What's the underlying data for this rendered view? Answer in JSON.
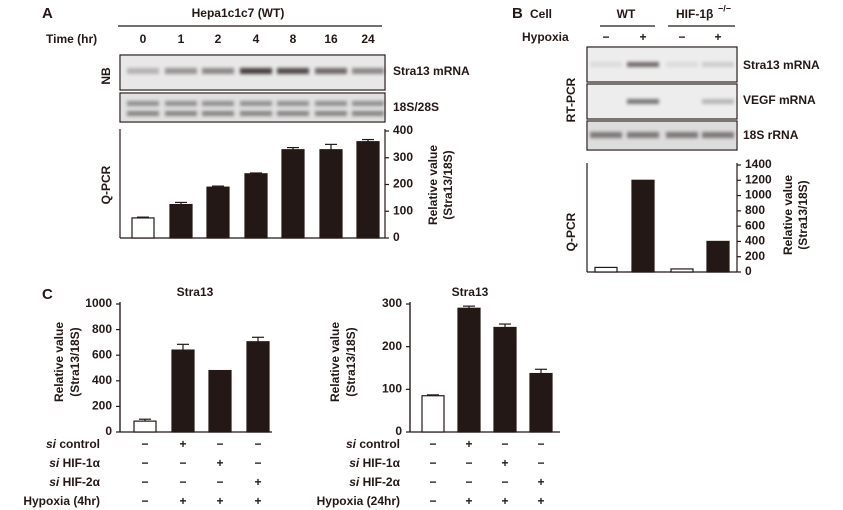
{
  "panel_A": {
    "letter": "A",
    "cell_line": "Hepa1c1c7 (WT)",
    "time_label": "Time (hr)",
    "times": [
      "0",
      "1",
      "2",
      "4",
      "8",
      "16",
      "24"
    ],
    "blot_side_label": "NB",
    "blots": [
      "Stra13 mRNA",
      "18S/28S"
    ],
    "chart_side_label": "Q-PCR"
  },
  "panel_B": {
    "letter": "B",
    "cell_label": "Cell",
    "cells": [
      "WT",
      "HIF-1β"
    ],
    "cell_superscript": "−/−",
    "hypoxia_label": "Hypoxia",
    "hypoxia": [
      "−",
      "+",
      "−",
      "+"
    ],
    "blot_side_label": "RT-PCR",
    "blots": [
      "Stra13 mRNA",
      "VEGF mRNA",
      "18S rRNA"
    ],
    "chart_side_label": "Q-PCR"
  },
  "panel_C": {
    "letter": "C",
    "left_conditions": [
      {
        "prefix": "si",
        "label": "control",
        "marks": [
          "−",
          "+",
          "−",
          "−"
        ]
      },
      {
        "prefix": "si",
        "label": "HIF-1α",
        "marks": [
          "−",
          "−",
          "+",
          "−"
        ]
      },
      {
        "prefix": "si",
        "label": "HIF-2α",
        "marks": [
          "−",
          "−",
          "−",
          "+"
        ]
      },
      {
        "label": "Hypoxia (4hr)",
        "marks": [
          "−",
          "+",
          "+",
          "+"
        ]
      }
    ],
    "right_conditions": [
      {
        "prefix": "si",
        "label": "control",
        "marks": [
          "−",
          "+",
          "−",
          "−"
        ]
      },
      {
        "prefix": "si",
        "label": "HIF-1α",
        "marks": [
          "−",
          "−",
          "+",
          "−"
        ]
      },
      {
        "prefix": "si",
        "label": "HIF-2α",
        "marks": [
          "−",
          "−",
          "−",
          "+"
        ]
      },
      {
        "label": "Hypoxia (24hr)",
        "marks": [
          "−",
          "+",
          "+",
          "+"
        ]
      }
    ]
  },
  "chart_data": [
    {
      "type": "bar",
      "categories": [
        null,
        null,
        null,
        null,
        null,
        null,
        null
      ],
      "values": [
        75,
        125,
        190,
        240,
        330,
        330,
        360
      ],
      "errors": [
        3,
        8,
        4,
        3,
        8,
        20,
        8
      ],
      "colors": [
        "#ffffff",
        "#231815",
        "#231815",
        "#231815",
        "#231815",
        "#231815",
        "#231815"
      ],
      "ylim": [
        0,
        400
      ],
      "yticks": [
        0,
        100,
        200,
        300,
        400
      ],
      "y_label": [
        "Relative value",
        "(Stra13/18S)"
      ]
    },
    {
      "type": "bar",
      "categories": [
        null,
        null,
        null,
        null
      ],
      "values": [
        60,
        1200,
        40,
        400
      ],
      "errors": [
        0,
        0,
        0,
        0
      ],
      "colors": [
        "#ffffff",
        "#231815",
        "#ffffff",
        "#231815"
      ],
      "ylim": [
        0,
        1400
      ],
      "yticks": [
        0,
        200,
        400,
        600,
        800,
        1000,
        1200,
        1400
      ],
      "y_label": [
        "Relative value",
        "(Stra13/18S)"
      ]
    },
    {
      "type": "bar",
      "title": "Stra13",
      "categories": [
        null,
        null,
        null,
        null
      ],
      "values": [
        85,
        640,
        480,
        705
      ],
      "errors": [
        15,
        45,
        0,
        35
      ],
      "colors": [
        "#ffffff",
        "#231815",
        "#231815",
        "#231815"
      ],
      "ylim": [
        0,
        1000
      ],
      "yticks": [
        0,
        200,
        400,
        600,
        800,
        1000
      ],
      "y_label": [
        "Relative value",
        "(Stra13/18S)"
      ]
    },
    {
      "type": "bar",
      "title": "Stra13",
      "categories": [
        null,
        null,
        null,
        null
      ],
      "values": [
        85,
        290,
        245,
        137
      ],
      "errors": [
        2,
        5,
        8,
        10
      ],
      "colors": [
        "#ffffff",
        "#231815",
        "#231815",
        "#231815"
      ],
      "ylim": [
        0,
        300
      ],
      "yticks": [
        0,
        100,
        200,
        300
      ],
      "y_label": [
        "Relative value",
        "(Stra13/18S)"
      ]
    }
  ]
}
